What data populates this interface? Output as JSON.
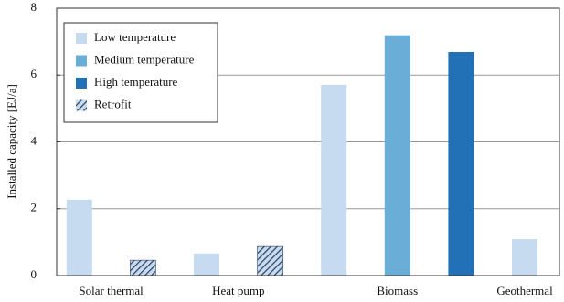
{
  "chart_data": {
    "type": "bar",
    "y_label": "Installed capacity [EJ/a]",
    "categories": [
      "Solar thermal",
      "Heat pump",
      "Biomass",
      "Geothermal"
    ],
    "series": [
      {
        "name": "Low temperature",
        "color": "#c6daf0",
        "values": [
          2.27,
          0.66,
          5.71,
          1.09
        ]
      },
      {
        "name": "Medium temperature",
        "color": "#6aaed8",
        "values": [
          null,
          null,
          7.19,
          null
        ]
      },
      {
        "name": "High temperature",
        "color": "#2270b5",
        "values": [
          null,
          null,
          6.69,
          null
        ]
      },
      {
        "name": "Retrofit",
        "color": "#2b3f5c",
        "hatch": true,
        "values": [
          0.46,
          0.87,
          null,
          null
        ]
      }
    ],
    "ylim": [
      0,
      8
    ],
    "yticks": [
      0,
      2,
      4,
      6,
      8
    ],
    "grid": true,
    "legend": "upper left"
  }
}
